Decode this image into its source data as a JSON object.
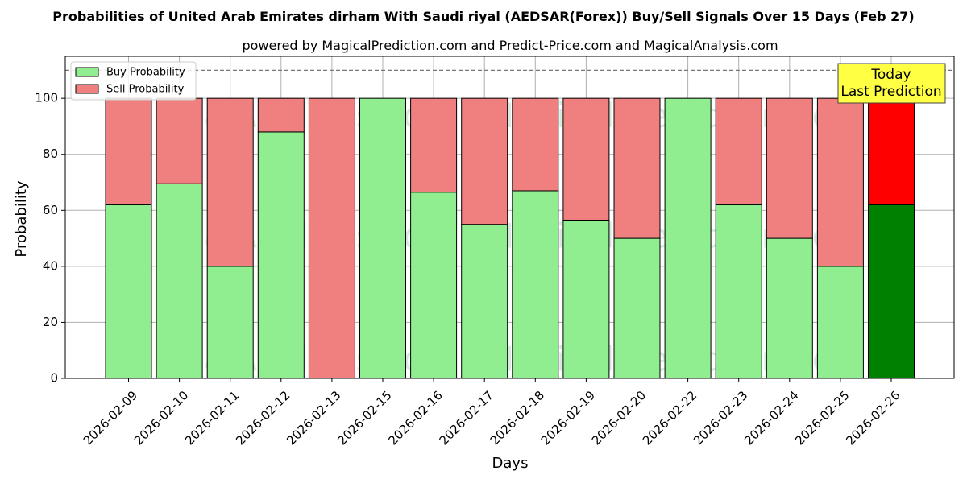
{
  "chart_data": {
    "type": "bar",
    "stacked": true,
    "title": "Probabilities of United Arab Emirates dirham With Saudi riyal (AEDSAR(Forex)) Buy/Sell Signals Over 15 Days (Feb 27)",
    "subtitle": "powered by MagicalPrediction.com and Predict-Price.com and MagicalAnalysis.com",
    "xlabel": "Days",
    "ylabel": "Probability",
    "ylim": [
      0,
      115
    ],
    "yticks": [
      0,
      20,
      40,
      60,
      80,
      100
    ],
    "grid": true,
    "legend_position": "top-left",
    "reference_line": 110,
    "categories": [
      "2026-02-09",
      "2026-02-10",
      "2026-02-11",
      "2026-02-12",
      "2026-02-13",
      "2026-02-15",
      "2026-02-16",
      "2026-02-17",
      "2026-02-18",
      "2026-02-19",
      "2026-02-20",
      "2026-02-22",
      "2026-02-23",
      "2026-02-24",
      "2026-02-25",
      "2026-02-26"
    ],
    "series": [
      {
        "name": "Buy Probability",
        "values": [
          62,
          69.5,
          40,
          88,
          0,
          100,
          66.5,
          55,
          67,
          56.5,
          50,
          100,
          62,
          50,
          40,
          62
        ],
        "color": "#90ee90",
        "today_color": "#008000"
      },
      {
        "name": "Sell Probability",
        "values": [
          38,
          30.5,
          60,
          12,
          100,
          0,
          33.5,
          45,
          33,
          43.5,
          50,
          0,
          38,
          50,
          60,
          38
        ],
        "color": "#f08080",
        "today_color": "#ff0000"
      }
    ],
    "annotation": {
      "lines": [
        "Today",
        "Last Prediction"
      ],
      "background": "#ffff44"
    },
    "watermarks": [
      "MagicalAnalysis.com",
      "MagicalPrediction.com"
    ]
  }
}
